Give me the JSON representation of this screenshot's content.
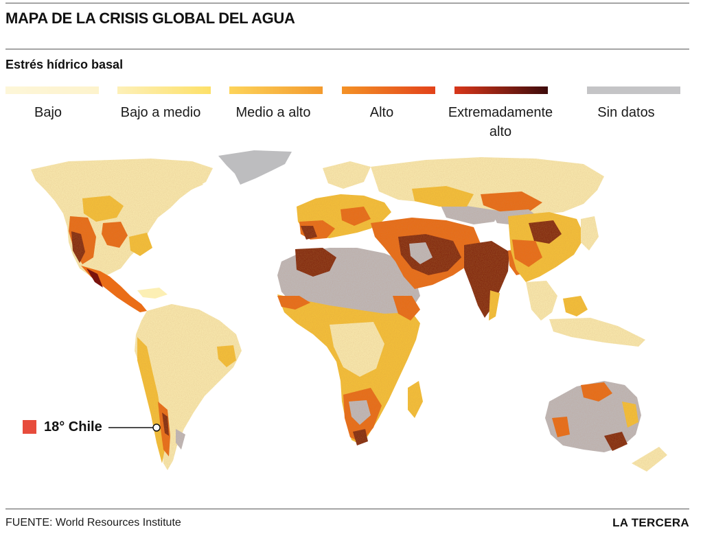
{
  "title": "MAPA DE LA CRISIS GLOBAL DEL AGUA",
  "subtitle": "Estrés hídrico basal",
  "legend": [
    {
      "label": "Bajo",
      "color_start": "#fdf6d8",
      "color_end": "#fdf3cc"
    },
    {
      "label": "Bajo a medio",
      "color_start": "#fdf0b8",
      "color_end": "#fde068"
    },
    {
      "label": "Medio a alto",
      "color_start": "#fdd45a",
      "color_end": "#f39a2e"
    },
    {
      "label": "Alto",
      "color_start": "#f49226",
      "color_end": "#e2421a"
    },
    {
      "label": "Extremadamente alto",
      "color_start": "#d8361a",
      "color_end": "#3d0b0b"
    },
    {
      "label": "Sin datos",
      "color_start": "#c4c4c6",
      "color_end": "#c4c4c6"
    }
  ],
  "callout": {
    "label": "18° Chile",
    "color": "#e74c3c"
  },
  "footer": {
    "source": "FUENTE: World Resources Institute",
    "logo": "LA TERCERA"
  },
  "palette": {
    "land_low": "#fcefb4",
    "land_med": "#f7c43a",
    "land_high": "#ea6d17",
    "land_extreme": "#7a130d",
    "no_data": "#bdbdbf",
    "border": "#ffffff"
  }
}
